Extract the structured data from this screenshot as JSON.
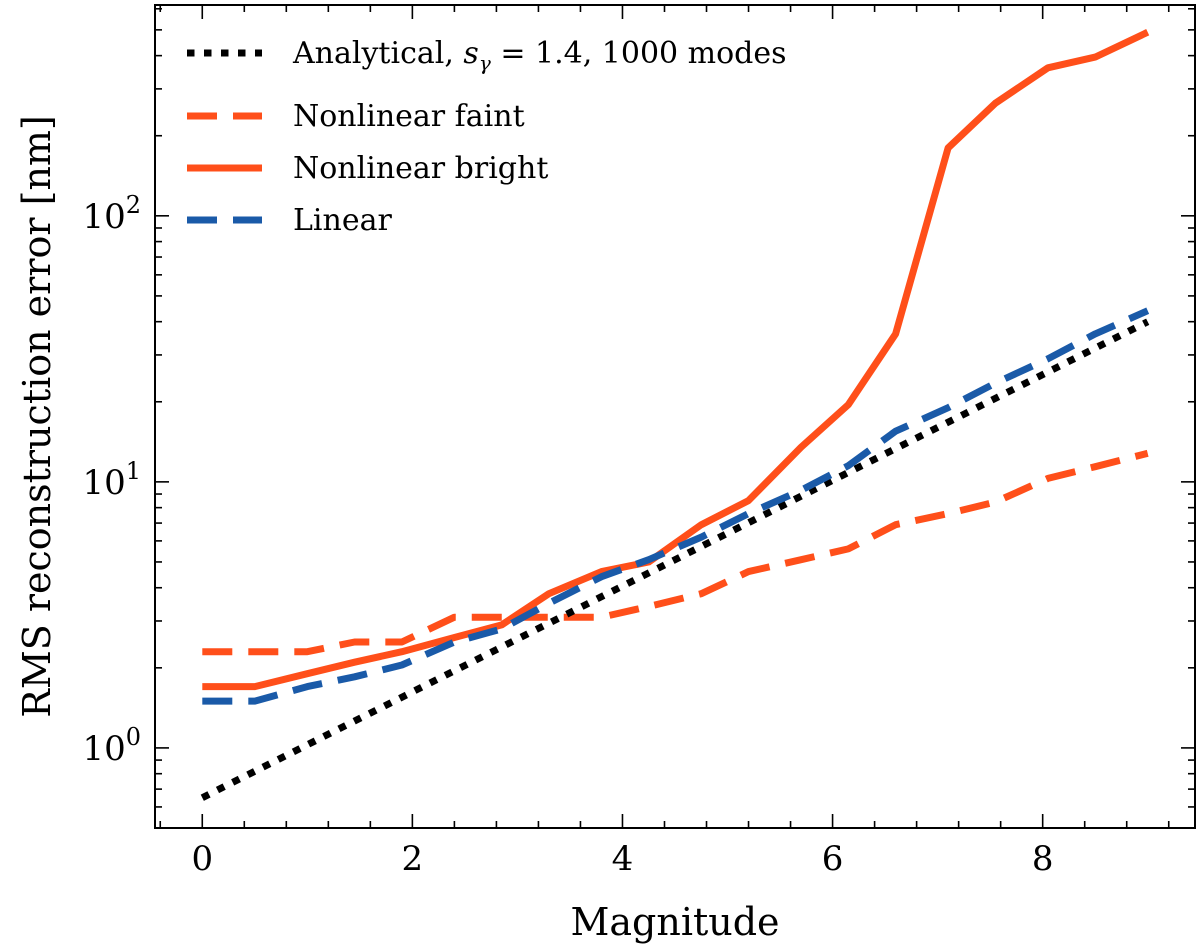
{
  "chart_data": {
    "type": "line",
    "title": "",
    "xlabel": "Magnitude",
    "ylabel": "RMS reconstruction error [nm]",
    "xlim": [
      -0.45,
      9.45
    ],
    "ylim": [
      0.5,
      620
    ],
    "yscale": "log",
    "x_ticks": [
      0,
      2,
      4,
      6,
      8
    ],
    "x_tick_labels": [
      "0",
      "2",
      "4",
      "6",
      "8"
    ],
    "y_ticks": [
      1,
      10,
      100
    ],
    "y_tick_base": "10",
    "y_tick_exponents": [
      "0",
      "1",
      "2"
    ],
    "grid": false,
    "legend_position": "top-left",
    "series": [
      {
        "name": "Analytical, s_γ = 1.4, 1000 modes",
        "legend_prefix": "Analytical, ",
        "legend_math_base": "s",
        "legend_math_sub": "γ",
        "legend_suffix": " = 1.4, 1000 modes",
        "color": "#000000",
        "style": "dotted",
        "x": [
          0,
          9
        ],
        "values": [
          0.65,
          40
        ]
      },
      {
        "name": "Nonlinear faint",
        "color": "#ff4f1a",
        "style": "dashed",
        "x": [
          0,
          0.5,
          1,
          1.45,
          1.9,
          2.4,
          2.85,
          3.3,
          3.8,
          4.25,
          4.75,
          5.2,
          5.7,
          6.15,
          6.6,
          7.1,
          7.55,
          8.05,
          8.5,
          9
        ],
        "values": [
          2.3,
          2.3,
          2.3,
          2.5,
          2.5,
          3.1,
          3.1,
          3.1,
          3.1,
          3.4,
          3.8,
          4.6,
          5.1,
          5.6,
          6.9,
          7.6,
          8.4,
          10.3,
          11.4,
          12.8
        ]
      },
      {
        "name": "Nonlinear bright",
        "color": "#ff4f1a",
        "style": "solid",
        "x": [
          0,
          0.5,
          1,
          1.45,
          1.9,
          2.4,
          2.85,
          3.3,
          3.8,
          4.25,
          4.75,
          5.2,
          5.7,
          6.15,
          6.6,
          7.1,
          7.55,
          8.05,
          8.5,
          9
        ],
        "values": [
          1.7,
          1.7,
          1.9,
          2.1,
          2.3,
          2.6,
          2.9,
          3.8,
          4.6,
          5.0,
          6.9,
          8.5,
          13.5,
          19.5,
          36,
          180,
          265,
          360,
          395,
          490
        ]
      },
      {
        "name": "Linear",
        "color": "#1a5aa8",
        "style": "dashed",
        "x": [
          0,
          0.5,
          1,
          1.45,
          1.9,
          2.4,
          2.85,
          3.3,
          3.8,
          4.25,
          4.75,
          5.2,
          5.7,
          6.15,
          6.6,
          7.1,
          7.55,
          8.05,
          8.5,
          9
        ],
        "values": [
          1.5,
          1.5,
          1.7,
          1.85,
          2.05,
          2.5,
          2.8,
          3.5,
          4.4,
          5.1,
          6.2,
          7.6,
          9.3,
          11.5,
          15.5,
          19,
          23.5,
          29,
          36,
          44
        ]
      }
    ]
  }
}
